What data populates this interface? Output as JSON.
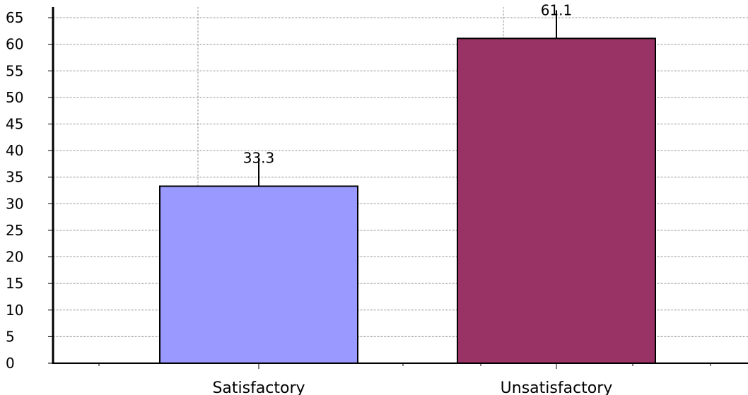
{
  "chart_data": {
    "type": "bar",
    "categories": [
      "Satisfactory",
      "Unsatisfactory"
    ],
    "values": [
      33.3,
      61.1
    ],
    "data_labels": [
      "33.3",
      "61.1"
    ],
    "colors": [
      "#9999ff",
      "#993366"
    ],
    "yticks": [
      0,
      5,
      10,
      15,
      20,
      25,
      30,
      35,
      40,
      45,
      50,
      55,
      60,
      65
    ],
    "ylim": [
      0,
      67
    ],
    "grid": true,
    "error_bars": true,
    "title": "",
    "xlabel": "",
    "ylabel": ""
  }
}
